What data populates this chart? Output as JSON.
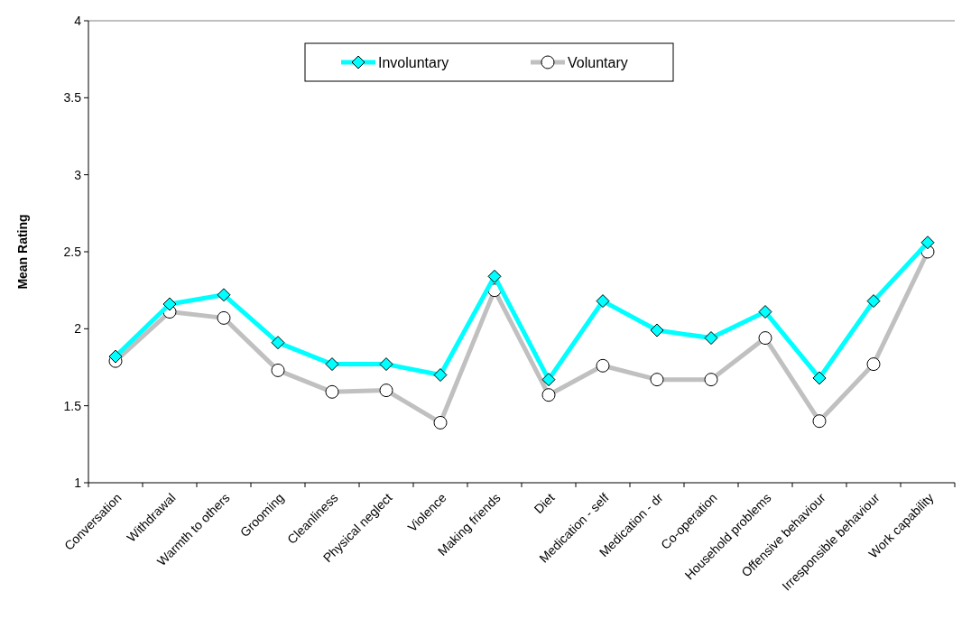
{
  "chart_data": {
    "type": "line",
    "ylabel": "Mean Rating",
    "categories": [
      "Conversation",
      "Withdrawal",
      "Warmth to others",
      "Grooming",
      "Cleanliness",
      "Physical neglect",
      "Violence",
      "Making friends",
      "Diet",
      "Medication - self",
      "Medication - dr",
      "Co-operation",
      "Household problems",
      "Offensive behaviour",
      "Irresponsible behaviour",
      "Work capability"
    ],
    "series": [
      {
        "name": "Involuntary",
        "color": "#00ffff",
        "marker": "diamond",
        "values": [
          1.82,
          2.16,
          2.22,
          1.91,
          1.77,
          1.77,
          1.7,
          2.34,
          1.67,
          2.18,
          1.99,
          1.94,
          2.11,
          1.68,
          2.18,
          2.56
        ]
      },
      {
        "name": "Voluntary",
        "color": "#c0c0c0",
        "marker": "circle",
        "values": [
          1.79,
          2.11,
          2.07,
          1.73,
          1.59,
          1.6,
          1.39,
          2.25,
          1.57,
          1.76,
          1.67,
          1.67,
          1.94,
          1.4,
          1.77,
          2.5
        ]
      }
    ],
    "ylim": [
      1,
      4
    ],
    "yticks": [
      1,
      1.5,
      2,
      2.5,
      3,
      3.5,
      4
    ],
    "grid": false,
    "legend": "top",
    "line_style": "solid"
  }
}
